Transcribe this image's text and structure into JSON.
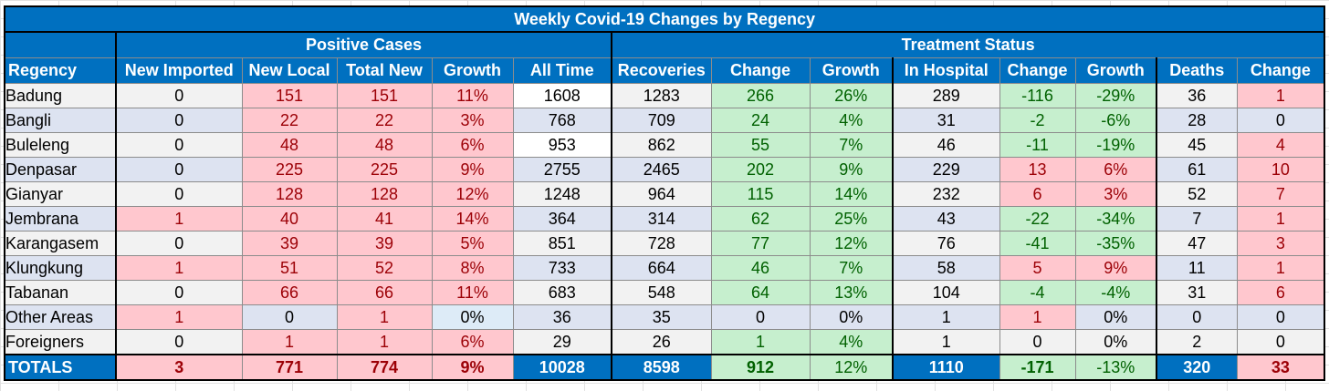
{
  "title": "Weekly Covid-19 Changes by Regency",
  "groups": {
    "positive": "Positive Cases",
    "treatment": "Treatment Status"
  },
  "columns": [
    "Regency",
    "New Imported",
    "New Local",
    "Total New",
    "Growth",
    "All Time",
    "Recoveries",
    "Change",
    "Growth",
    "In Hospital",
    "Change",
    "Growth",
    "Deaths",
    "Change"
  ],
  "rows": [
    {
      "name": "Badung",
      "cells": [
        "0",
        "151",
        "151",
        "11%",
        "1608",
        "1283",
        "266",
        "26%",
        "289",
        "-116",
        "-29%",
        "36",
        "1"
      ]
    },
    {
      "name": "Bangli",
      "cells": [
        "0",
        "22",
        "22",
        "3%",
        "768",
        "709",
        "24",
        "4%",
        "31",
        "-2",
        "-6%",
        "28",
        "0"
      ]
    },
    {
      "name": "Buleleng",
      "cells": [
        "0",
        "48",
        "48",
        "6%",
        "953",
        "862",
        "55",
        "7%",
        "46",
        "-11",
        "-19%",
        "45",
        "4"
      ]
    },
    {
      "name": "Denpasar",
      "cells": [
        "0",
        "225",
        "225",
        "9%",
        "2755",
        "2465",
        "202",
        "9%",
        "229",
        "13",
        "6%",
        "61",
        "10"
      ]
    },
    {
      "name": "Gianyar",
      "cells": [
        "0",
        "128",
        "128",
        "12%",
        "1248",
        "964",
        "115",
        "14%",
        "232",
        "6",
        "3%",
        "52",
        "7"
      ]
    },
    {
      "name": "Jembrana",
      "cells": [
        "1",
        "40",
        "41",
        "14%",
        "364",
        "314",
        "62",
        "25%",
        "43",
        "-22",
        "-34%",
        "7",
        "1"
      ]
    },
    {
      "name": "Karangasem",
      "cells": [
        "0",
        "39",
        "39",
        "5%",
        "851",
        "728",
        "77",
        "12%",
        "76",
        "-41",
        "-35%",
        "47",
        "3"
      ]
    },
    {
      "name": "Klungkung",
      "cells": [
        "1",
        "51",
        "52",
        "8%",
        "733",
        "664",
        "46",
        "7%",
        "58",
        "5",
        "9%",
        "11",
        "1"
      ]
    },
    {
      "name": "Tabanan",
      "cells": [
        "0",
        "66",
        "66",
        "11%",
        "683",
        "548",
        "64",
        "13%",
        "104",
        "-4",
        "-4%",
        "31",
        "6"
      ]
    },
    {
      "name": "Other Areas",
      "cells": [
        "1",
        "0",
        "1",
        "0%",
        "36",
        "35",
        "0",
        "0%",
        "1",
        "1",
        "0%",
        "0",
        "0"
      ]
    },
    {
      "name": "Foreigners",
      "cells": [
        "0",
        "1",
        "1",
        "6%",
        "29",
        "26",
        "1",
        "4%",
        "1",
        "0",
        "0%",
        "2",
        "0"
      ]
    }
  ],
  "totals": {
    "label": "TOTALS",
    "cells": [
      "3",
      "771",
      "774",
      "9%",
      "10028",
      "8598",
      "912",
      "12%",
      "1110",
      "-171",
      "-13%",
      "320",
      "33"
    ]
  },
  "colors": {
    "header_blue": "#0070c0",
    "red_fill": "#ffc7ce",
    "red_text": "#9c0006",
    "green_fill": "#c6efce",
    "green_text": "#006100"
  }
}
